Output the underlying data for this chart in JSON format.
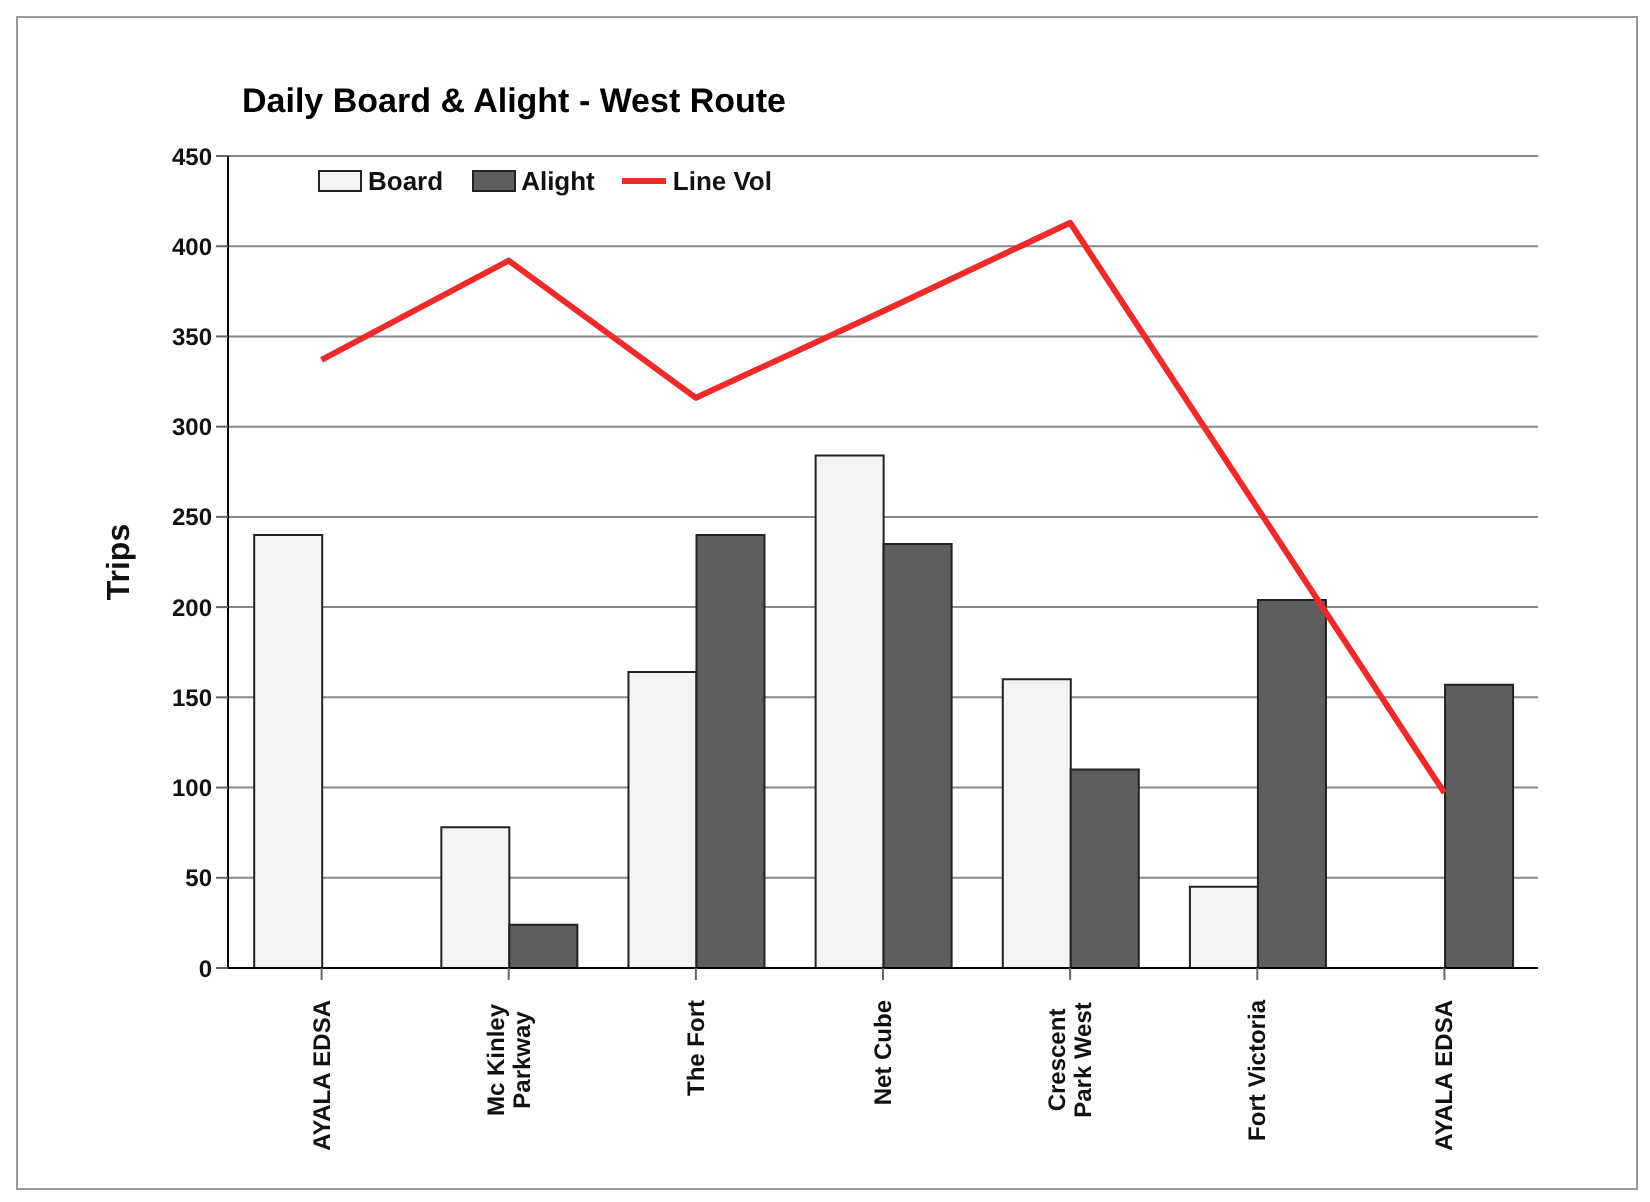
{
  "chart_data": {
    "type": "bar",
    "title": "Daily Board & Alight - West Route",
    "ylabel": "Trips",
    "categories": [
      "AYALA EDSA",
      "Mc Kinley Parkway",
      "The Fort",
      "Net Cube",
      "Crescent Park West",
      "Fort Victoria",
      "AYALA EDSA"
    ],
    "series": [
      {
        "name": "Board",
        "color": "#f2f3f2",
        "values": [
          240,
          78,
          164,
          284,
          160,
          45,
          0
        ]
      },
      {
        "name": "Alight",
        "color": "#5e5e60",
        "values": [
          0,
          24,
          240,
          235,
          110,
          204,
          157
        ]
      },
      {
        "name": "Line Vol",
        "type": "line",
        "color": "#ee2a2a",
        "values": [
          337,
          392,
          316,
          364,
          413,
          255,
          97
        ]
      }
    ],
    "ylim": [
      0,
      450
    ],
    "yticks": [
      0,
      50,
      100,
      150,
      200,
      250,
      300,
      350,
      400,
      450
    ],
    "grid": "y",
    "legend": "top left",
    "marker": "none"
  }
}
